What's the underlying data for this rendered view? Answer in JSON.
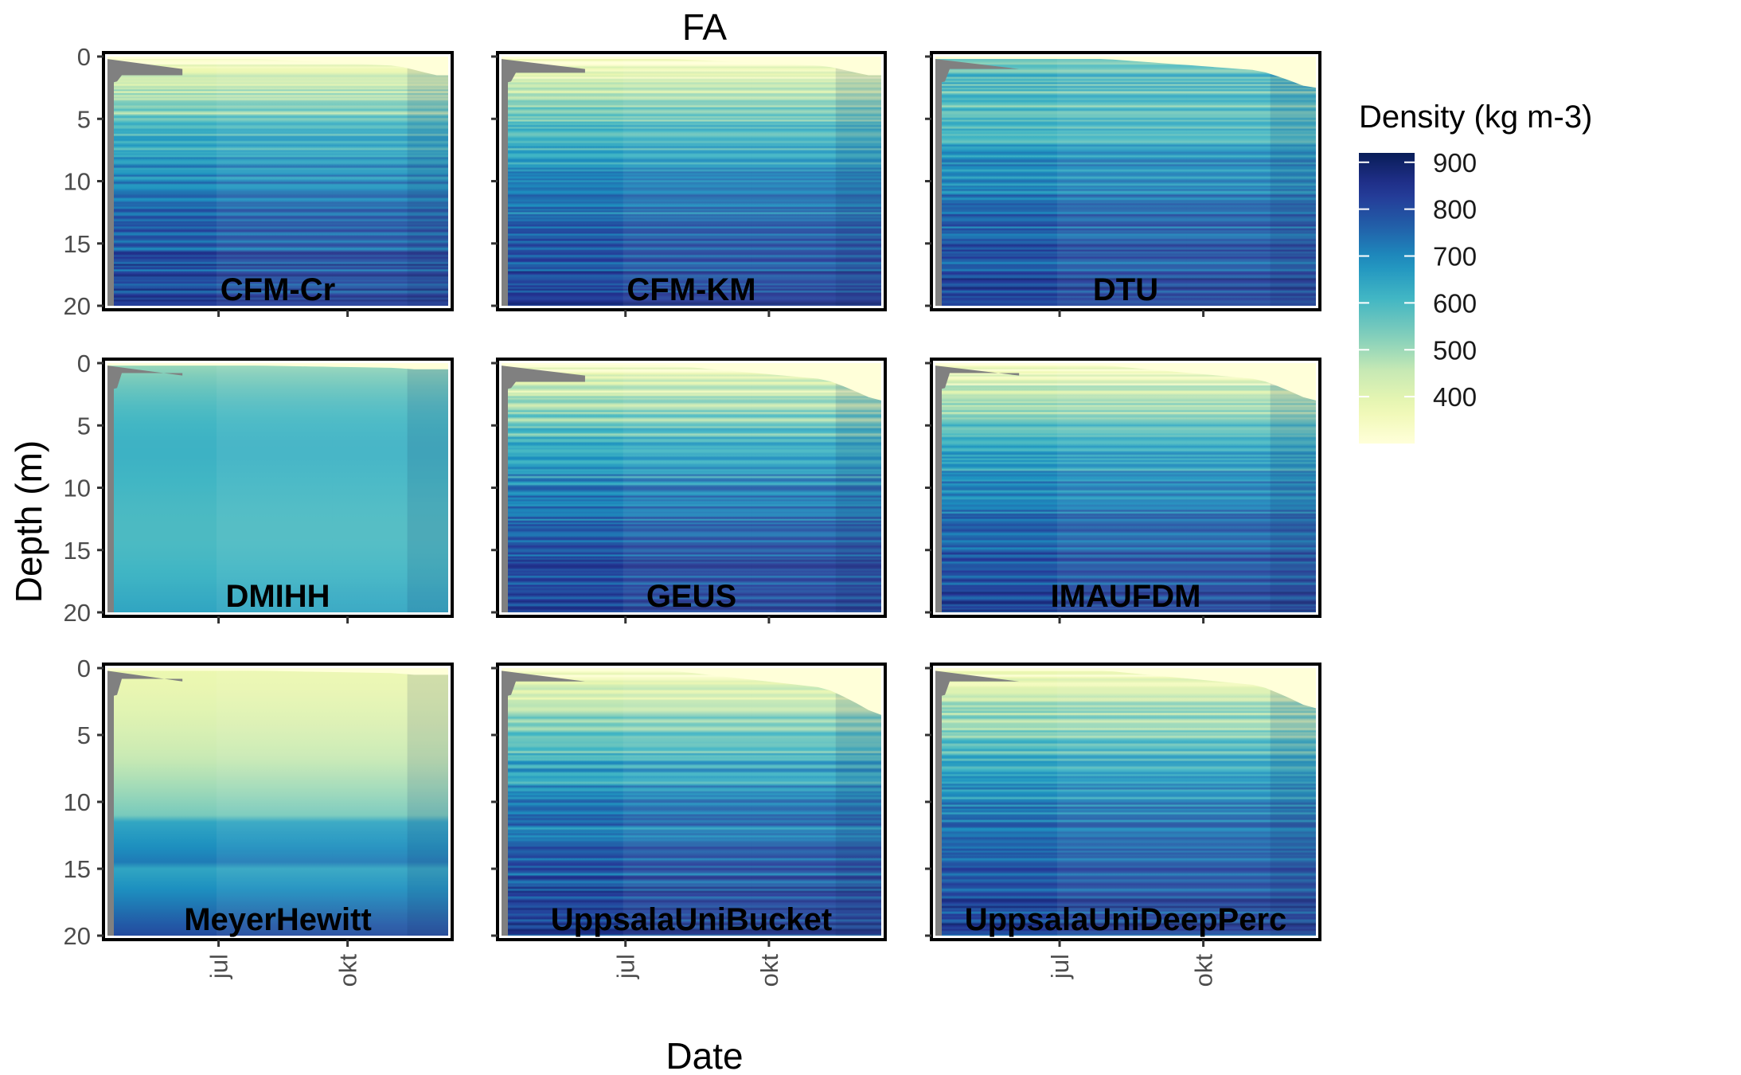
{
  "chart_data": {
    "type": "heatmap",
    "title": "FA",
    "xlabel": "Date",
    "ylabel": "Depth (m)",
    "x_ticks": [
      "jul",
      "okt"
    ],
    "y_ticks": [
      0,
      5,
      10,
      15,
      20
    ],
    "ylim": [
      20,
      0
    ],
    "legend": {
      "title": "Density (kg m-3)",
      "ticks": [
        900,
        800,
        700,
        600,
        500,
        400
      ],
      "range": [
        300,
        920
      ],
      "placement": "right"
    },
    "colors": {
      "scale": [
        "#ffffd9",
        "#edf8b1",
        "#c7e9b4",
        "#7fcdbb",
        "#41b6c4",
        "#1d91c0",
        "#225ea8",
        "#253494",
        "#081d58"
      ],
      "missing": "#808080",
      "frame": "#000000"
    },
    "panels": [
      {
        "name": "CFM-Cr",
        "style": "layered",
        "surface_start": 1.5,
        "surface_end": 1.5
      },
      {
        "name": "CFM-KM",
        "style": "layered",
        "surface_start": 1.3,
        "surface_end": 1.5
      },
      {
        "name": "DTU",
        "style": "layered_wet",
        "surface_start": 1.0,
        "surface_end": 2.5
      },
      {
        "name": "DMIHH",
        "style": "smooth",
        "surface_start": 0.8,
        "surface_end": 0.5
      },
      {
        "name": "GEUS",
        "style": "layered",
        "surface_start": 1.5,
        "surface_end": 3.0
      },
      {
        "name": "IMAUFDM",
        "style": "layered",
        "surface_start": 0.8,
        "surface_end": 3.0
      },
      {
        "name": "MeyerHewitt",
        "style": "smooth_melt",
        "surface_start": 0.8,
        "surface_end": 0.5
      },
      {
        "name": "UppsalaUniBucket",
        "style": "layered",
        "surface_start": 1.0,
        "surface_end": 3.5
      },
      {
        "name": "UppsalaUniDeepPerc",
        "style": "layered",
        "surface_start": 1.0,
        "surface_end": 3.0
      }
    ]
  }
}
